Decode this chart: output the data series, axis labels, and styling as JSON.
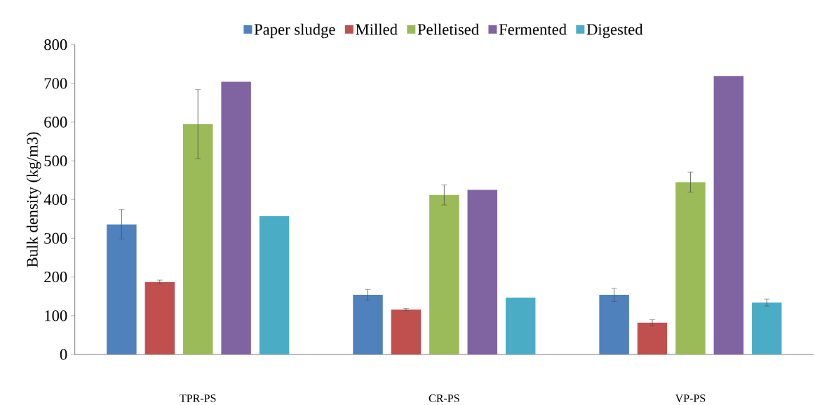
{
  "chart_data": {
    "type": "bar",
    "ylabel": "Bulk density (kg/m3)",
    "categories": [
      "TPR-PS",
      "CR-PS",
      "VP-PS"
    ],
    "series": [
      {
        "name": "Paper sludge",
        "color": "#4f81bd",
        "values": [
          336,
          154,
          154
        ],
        "errors": [
          38,
          14,
          17
        ]
      },
      {
        "name": "Milled",
        "color": "#c0504d",
        "values": [
          187,
          116,
          82
        ],
        "errors": [
          5,
          3,
          8
        ]
      },
      {
        "name": "Pelletised",
        "color": "#9bbb59",
        "values": [
          595,
          412,
          445
        ],
        "errors": [
          89,
          26,
          26
        ]
      },
      {
        "name": "Fermented",
        "color": "#8064a2",
        "values": [
          704,
          425,
          719
        ]
      },
      {
        "name": "Digested",
        "color": "#4bacc6",
        "values": [
          357,
          147,
          134
        ],
        "errors": [
          null,
          null,
          9
        ]
      }
    ],
    "ylim": [
      0,
      800
    ],
    "yticks": [
      0,
      100,
      200,
      300,
      400,
      500,
      600,
      700,
      800
    ],
    "legend": "top"
  }
}
